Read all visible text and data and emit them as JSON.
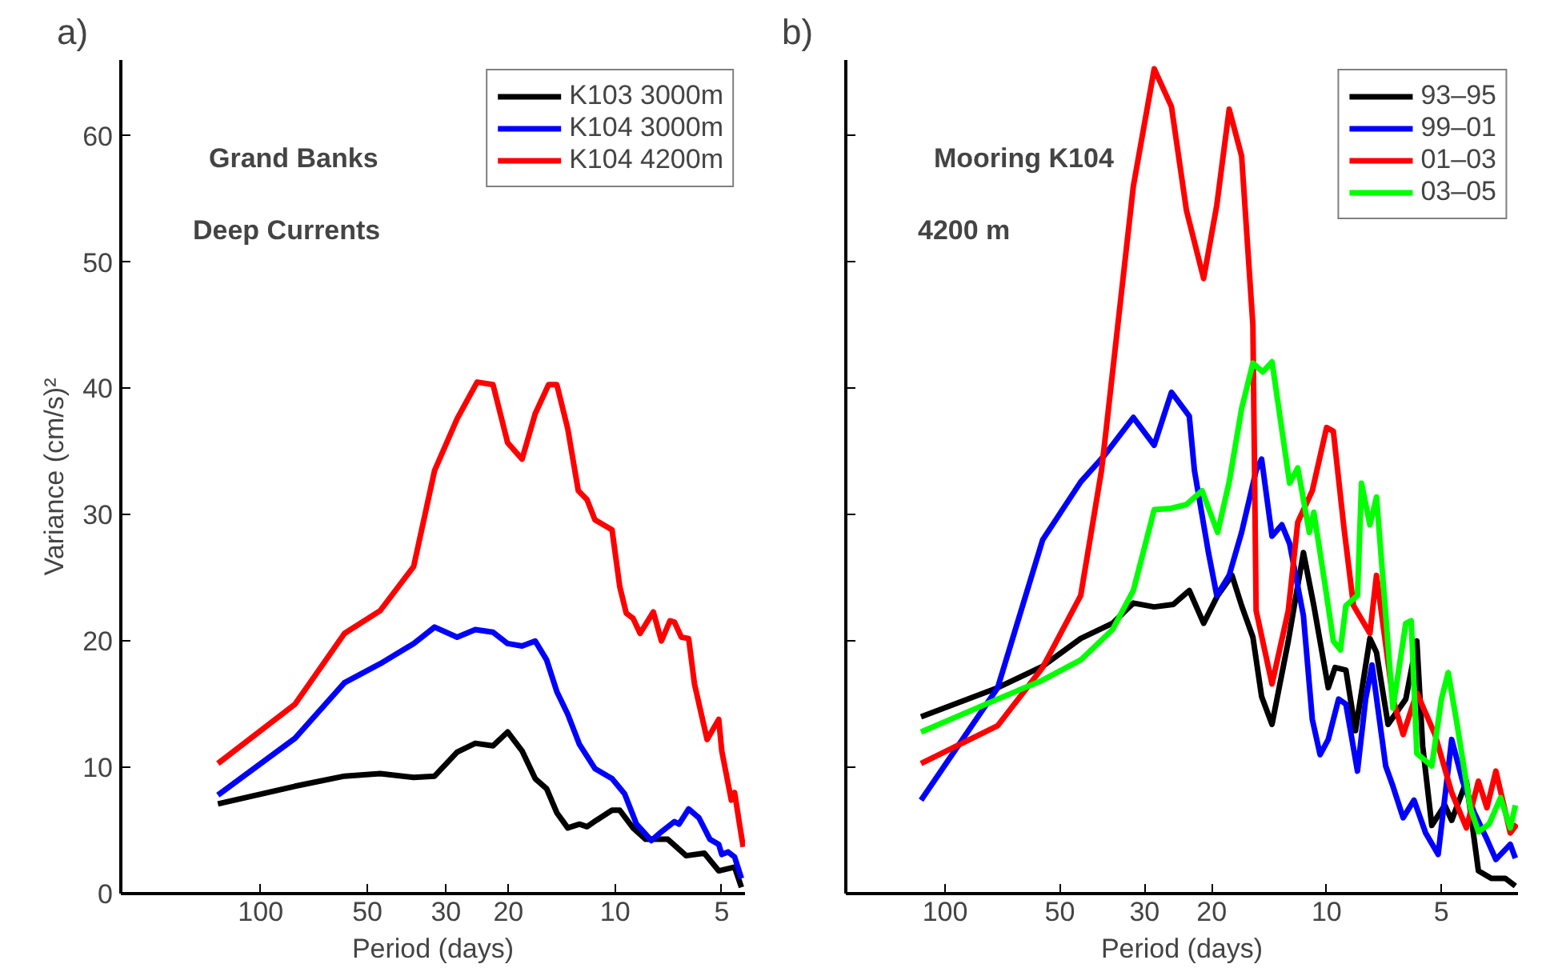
{
  "chart_data": [
    {
      "type": "line",
      "title": "a)",
      "xlabel": "Period (days)",
      "ylabel": "Variance (cm/s)²",
      "log": "x",
      "xlim": [
        248,
        4.3
      ],
      "ylim": [
        0,
        66
      ],
      "xticks": [
        100,
        50,
        30,
        20,
        10,
        5
      ],
      "yticks": [
        0,
        10,
        20,
        30,
        40,
        50,
        60
      ],
      "legend": "top right",
      "annotations": [
        "Grand Banks",
        "Deep Currents"
      ],
      "series": [
        {
          "name": "K103 3000m",
          "color": "#000000",
          "x": [
            132,
            80,
            58,
            46,
            37.0,
            32.3,
            27.9,
            24.8,
            22.1,
            20.1,
            18.3,
            16.8,
            15.6,
            14.6,
            13.6,
            12.6,
            12.0,
            11.3,
            10.2,
            9.7,
            8.9,
            8.2,
            7.1,
            6.3,
            5.6,
            5.1,
            4.6,
            4.4
          ],
          "values": [
            7.1,
            8.5,
            9.3,
            9.5,
            9.2,
            9.3,
            11.2,
            11.9,
            11.7,
            12.8,
            11.3,
            9.1,
            8.3,
            6.4,
            5.2,
            5.5,
            5.3,
            5.8,
            6.6,
            6.6,
            5.2,
            4.3,
            4.3,
            3.0,
            3.2,
            1.8,
            2.1,
            0.5
          ]
        },
        {
          "name": "K104 3000m",
          "color": "#0000ff",
          "x": [
            132,
            80,
            58,
            46,
            37.0,
            32.3,
            27.9,
            24.8,
            22.1,
            20.1,
            18.3,
            16.8,
            15.6,
            14.6,
            13.6,
            12.6,
            11.4,
            10.2,
            9.4,
            8.7,
            7.9,
            7.4,
            6.8,
            6.6,
            6.2,
            5.8,
            5.4,
            5.1,
            5.0,
            4.8,
            4.6,
            4.4
          ],
          "values": [
            7.8,
            12.3,
            16.7,
            18.2,
            19.8,
            21.1,
            20.3,
            20.9,
            20.7,
            19.8,
            19.6,
            20.0,
            18.5,
            16.0,
            14.2,
            11.8,
            9.9,
            9.1,
            7.9,
            5.5,
            4.2,
            4.9,
            5.7,
            5.5,
            6.7,
            6.0,
            4.3,
            3.9,
            3.1,
            3.3,
            2.9,
            1.2
          ]
        },
        {
          "name": "K104 4200m",
          "color": "#ff0000",
          "x": [
            132,
            80,
            58,
            46,
            37.0,
            32.3,
            27.9,
            24.5,
            22.1,
            20.1,
            18.3,
            16.8,
            15.4,
            14.6,
            13.6,
            12.7,
            12.0,
            11.4,
            10.2,
            9.7,
            9.3,
            8.9,
            8.5,
            7.8,
            7.4,
            7.0,
            6.8,
            6.5,
            6.2,
            5.97,
            5.5,
            5.1,
            5.0,
            4.7,
            4.6,
            4.45,
            4.35
          ],
          "values": [
            10.3,
            15.0,
            20.6,
            22.4,
            25.9,
            33.5,
            37.6,
            40.5,
            40.3,
            35.7,
            34.4,
            38.0,
            40.3,
            40.3,
            36.8,
            31.9,
            31.2,
            29.6,
            28.8,
            24.3,
            22.2,
            21.8,
            20.6,
            22.3,
            20.0,
            21.6,
            21.5,
            20.3,
            20.2,
            16.6,
            12.2,
            13.8,
            11.3,
            7.4,
            8.0,
            5.4,
            3.7
          ]
        }
      ]
    },
    {
      "type": "line",
      "title": "b)",
      "xlabel": "Period (days)",
      "log": "x",
      "xlim": [
        182,
        3.15
      ],
      "ylim": [
        0,
        66
      ],
      "xticks": [
        100,
        50,
        30,
        20,
        10,
        5
      ],
      "yticks": [
        0,
        10,
        20,
        30,
        40,
        50,
        60
      ],
      "tick_labels": "x",
      "legend": "top right",
      "annotations": [
        "Mooring K104",
        "4200 m"
      ],
      "series": [
        {
          "name": "93–95",
          "color": "#000000",
          "x": [
            115.6,
            72.8,
            55.5,
            44.1,
            36.4,
            32.1,
            28.3,
            25.2,
            22.9,
            21.0,
            19.3,
            17.7,
            16.7,
            15.6,
            14.8,
            13.9,
            12.6,
            11.5,
            10.8,
            9.9,
            9.5,
            8.9,
            8.4,
            7.7,
            7.4,
            6.9,
            6.2,
            5.8,
            5.6,
            5.3,
            4.9,
            4.7,
            4.3,
            4.0,
            3.7,
            3.4,
            3.2
          ],
          "values": [
            14.0,
            16.3,
            18.0,
            20.2,
            21.4,
            23.0,
            22.7,
            22.9,
            24.0,
            21.4,
            23.6,
            25.2,
            22.8,
            20.3,
            15.6,
            13.4,
            20.0,
            27.0,
            22.8,
            16.3,
            17.9,
            17.7,
            12.9,
            20.2,
            19.1,
            13.4,
            15.4,
            20.0,
            11.7,
            5.4,
            7.0,
            5.8,
            8.9,
            1.8,
            1.2,
            1.2,
            0.6
          ]
        },
        {
          "name": "99–01",
          "color": "#0000ff",
          "x": [
            115.6,
            72.8,
            55.5,
            44.1,
            38.2,
            32.1,
            28.3,
            25.5,
            22.9,
            22.2,
            20.4,
            19.4,
            18.0,
            16.7,
            15.3,
            14.8,
            13.9,
            13.1,
            12.5,
            11.5,
            10.9,
            10.4,
            9.9,
            9.3,
            8.9,
            8.3,
            7.9,
            7.6,
            7.0,
            6.7,
            6.3,
            5.9,
            5.5,
            5.1,
            4.7,
            4.4,
            4.1,
            3.8,
            3.6,
            3.3,
            3.2
          ],
          "values": [
            7.4,
            16.3,
            28.0,
            32.6,
            34.7,
            37.7,
            35.5,
            39.7,
            37.8,
            33.5,
            27.0,
            23.6,
            25.2,
            28.6,
            33.5,
            34.4,
            28.3,
            29.2,
            27.7,
            22.0,
            13.8,
            11.0,
            12.2,
            15.4,
            15.0,
            9.7,
            15.4,
            18.1,
            10.1,
            8.5,
            6.0,
            7.4,
            4.8,
            3.1,
            12.2,
            8.9,
            6.4,
            4.3,
            2.7,
            3.9,
            2.8
          ]
        },
        {
          "name": "01–03",
          "color": "#ff0000",
          "x": [
            115.6,
            72.8,
            55.5,
            44.1,
            38.9,
            37.8,
            32.1,
            28.3,
            25.5,
            23.3,
            21.0,
            19.4,
            18.0,
            16.7,
            15.6,
            15.3,
            13.9,
            12.6,
            11.9,
            10.9,
            10.0,
            9.6,
            9.0,
            8.5,
            7.7,
            7.4,
            6.7,
            6.3,
            5.8,
            5.2,
            4.7,
            4.3,
            4.0,
            3.8,
            3.6,
            3.3,
            3.17
          ],
          "values": [
            10.3,
            13.3,
            17.9,
            23.6,
            33.5,
            36.8,
            56.0,
            65.3,
            62.3,
            54.1,
            48.7,
            54.5,
            62.1,
            58.4,
            45.0,
            22.4,
            16.6,
            22.4,
            29.4,
            31.9,
            36.9,
            36.6,
            28.9,
            22.8,
            20.6,
            25.2,
            15.4,
            12.6,
            15.9,
            12.6,
            8.0,
            5.2,
            8.9,
            6.8,
            9.7,
            4.8,
            5.5
          ]
        },
        {
          "name": "03–05",
          "color": "#00ff00",
          "x": [
            115.6,
            72.8,
            55.5,
            44.1,
            36.4,
            32.1,
            28.3,
            25.6,
            23.3,
            21.2,
            19.3,
            18.0,
            16.7,
            15.6,
            14.7,
            13.9,
            13.4,
            12.5,
            11.9,
            11.1,
            10.8,
            10.1,
            9.6,
            9.2,
            8.9,
            8.3,
            8.1,
            7.7,
            7.4,
            7.1,
            6.7,
            6.2,
            6.0,
            5.8,
            5.3,
            5.0,
            4.8,
            4.55,
            4.2,
            4.0,
            3.75,
            3.5,
            3.3,
            3.2
          ],
          "values": [
            12.8,
            15.4,
            16.9,
            18.5,
            20.9,
            24.0,
            30.4,
            30.5,
            30.8,
            31.9,
            28.6,
            32.6,
            38.4,
            42.0,
            41.3,
            42.1,
            38.8,
            32.5,
            33.7,
            28.6,
            30.2,
            24.5,
            20.0,
            19.3,
            22.8,
            23.6,
            32.5,
            29.2,
            31.4,
            24.5,
            14.7,
            21.4,
            21.6,
            11.1,
            10.1,
            15.4,
            17.5,
            13.4,
            6.8,
            4.9,
            5.5,
            7.6,
            5.2,
            7.0
          ]
        }
      ]
    }
  ]
}
